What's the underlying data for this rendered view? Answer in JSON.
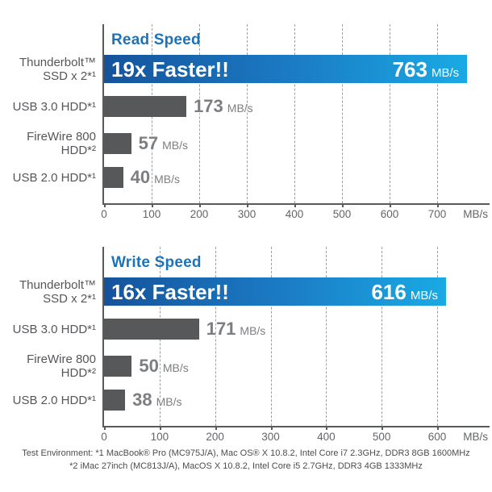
{
  "colors": {
    "title_blue": "#1b74ba",
    "bar_gradient_left": "#15539b",
    "bar_gradient_mid": "#1b7ec7",
    "bar_gradient_right": "#19aae4",
    "bar_gray": "#57585a",
    "label_gray": "#55565a",
    "axis_gray": "#595a5c",
    "value_gray": "#7c7e81",
    "footnote_gray": "#4a4c4e"
  },
  "chart_data": [
    {
      "type": "bar",
      "orientation": "horizontal",
      "title": "Read Speed",
      "unit": "MB/s",
      "xlabel": "MB/s",
      "grid": "dashed-vertical",
      "legend": "none",
      "axis_ticks": [
        0,
        100,
        200,
        300,
        400,
        500,
        600,
        700
      ],
      "axis_max_tick": 700,
      "categories": [
        "Thunderbolt™ SSD x 2*¹",
        "USB 3.0 HDD*¹",
        "FireWire 800 HDD*²",
        "USB 2.0 HDD*¹"
      ],
      "values": [
        763,
        173,
        57,
        40
      ],
      "rows": [
        {
          "label_lines": [
            "Thunderbolt™",
            "SSD x 2*¹"
          ],
          "value": 763,
          "value_label": "763",
          "annotation": "19x Faster!!",
          "highlight": true
        },
        {
          "label_lines": [
            "USB 3.0 HDD*¹"
          ],
          "value": 173,
          "value_label": "173",
          "highlight": false
        },
        {
          "label_lines": [
            "FireWire 800",
            "HDD*²"
          ],
          "value": 57,
          "value_label": "57",
          "highlight": false
        },
        {
          "label_lines": [
            "USB 2.0 HDD*¹"
          ],
          "value": 40,
          "value_label": "40",
          "highlight": false
        }
      ]
    },
    {
      "type": "bar",
      "orientation": "horizontal",
      "title": "Write Speed",
      "unit": "MB/s",
      "xlabel": "MB/s",
      "grid": "dashed-vertical",
      "legend": "none",
      "axis_ticks": [
        0,
        100,
        200,
        300,
        400,
        500,
        600
      ],
      "axis_max_tick": 600,
      "categories": [
        "Thunderbolt™ SSD x 2*¹",
        "USB 3.0 HDD*¹",
        "FireWire 800 HDD*²",
        "USB 2.0 HDD*¹"
      ],
      "values": [
        616,
        171,
        50,
        38
      ],
      "rows": [
        {
          "label_lines": [
            "Thunderbolt™",
            "SSD x 2*¹"
          ],
          "value": 616,
          "value_label": "616",
          "annotation": "16x Faster!!",
          "highlight": true
        },
        {
          "label_lines": [
            "USB 3.0 HDD*¹"
          ],
          "value": 171,
          "value_label": "171",
          "highlight": false
        },
        {
          "label_lines": [
            "FireWire 800",
            "HDD*²"
          ],
          "value": 50,
          "value_label": "50",
          "highlight": false
        },
        {
          "label_lines": [
            "USB 2.0 HDD*¹"
          ],
          "value": 38,
          "value_label": "38",
          "highlight": false
        }
      ]
    }
  ],
  "footer": {
    "lines": [
      "Test Environment: *1 MacBook® Pro (MC975J/A), Mac OS® X 10.8.2, Intel Core i7 2.3GHz, DDR3 8GB 1600MHz",
      "*2 iMac 27inch (MC813J/A), MacOS X 10.8.2, Intel Core i5 2.7GHz, DDR3 4GB 1333MHz"
    ]
  }
}
